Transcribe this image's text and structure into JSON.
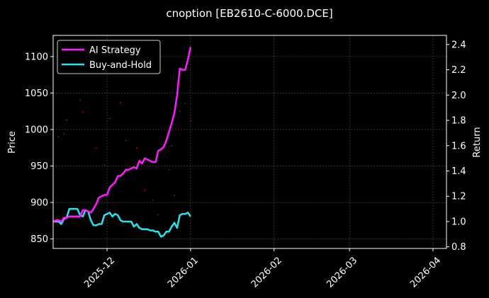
{
  "chart_data": {
    "type": "line",
    "title": "cnoption [EB2610-C-6000.DCE]",
    "xlabel": "",
    "ylabel": "Price",
    "y2label": "Return",
    "grid": true,
    "legend_position": "top-left",
    "x_range": [
      "2025-11-11",
      "2026-04-06"
    ],
    "x_ticks": [
      "2025-12",
      "2026-01",
      "2026-02",
      "2026-03",
      "2026-04"
    ],
    "x_tick_dates": [
      "2025-12-01",
      "2026-01-01",
      "2026-02-01",
      "2026-03-01",
      "2026-04-01"
    ],
    "ylim": [
      837,
      1129
    ],
    "y_ticks": [
      850,
      900,
      950,
      1000,
      1050,
      1100
    ],
    "y2lim": [
      0.787,
      2.472
    ],
    "y2_ticks": [
      0.8,
      1.0,
      1.2,
      1.4,
      1.6,
      1.8,
      2.0,
      2.2,
      2.4
    ],
    "colors": {
      "ai": "#ff1aff",
      "bh": "#22e6ee",
      "points": "#c0003c",
      "grid": "#555555"
    },
    "series": [
      {
        "name": "AI Strategy",
        "axis": "right",
        "color": "#ff1aff",
        "points": [
          [
            "2025-11-11",
            1.0
          ],
          [
            "2025-11-12",
            1.01
          ],
          [
            "2025-11-13",
            1.01
          ],
          [
            "2025-11-14",
            1.0
          ],
          [
            "2025-11-15",
            1.03
          ],
          [
            "2025-11-16",
            1.03
          ],
          [
            "2025-11-17",
            1.04
          ],
          [
            "2025-11-18",
            1.04
          ],
          [
            "2025-11-19",
            1.04
          ],
          [
            "2025-11-20",
            1.04
          ],
          [
            "2025-11-21",
            1.04
          ],
          [
            "2025-11-22",
            1.09
          ],
          [
            "2025-11-23",
            1.09
          ],
          [
            "2025-11-24",
            1.08
          ],
          [
            "2025-11-25",
            1.07
          ],
          [
            "2025-11-26",
            1.1
          ],
          [
            "2025-11-27",
            1.14
          ],
          [
            "2025-11-28",
            1.19
          ],
          [
            "2025-11-29",
            1.2
          ],
          [
            "2025-11-30",
            1.21
          ],
          [
            "2025-12-01",
            1.21
          ],
          [
            "2025-12-02",
            1.27
          ],
          [
            "2025-12-03",
            1.29
          ],
          [
            "2025-12-04",
            1.31
          ],
          [
            "2025-12-05",
            1.36
          ],
          [
            "2025-12-06",
            1.36
          ],
          [
            "2025-12-07",
            1.38
          ],
          [
            "2025-12-08",
            1.41
          ],
          [
            "2025-12-09",
            1.41
          ],
          [
            "2025-12-10",
            1.42
          ],
          [
            "2025-12-11",
            1.43
          ],
          [
            "2025-12-12",
            1.42
          ],
          [
            "2025-12-13",
            1.48
          ],
          [
            "2025-12-14",
            1.46
          ],
          [
            "2025-12-15",
            1.5
          ],
          [
            "2025-12-16",
            1.49
          ],
          [
            "2025-12-17",
            1.48
          ],
          [
            "2025-12-18",
            1.47
          ],
          [
            "2025-12-19",
            1.47
          ],
          [
            "2025-12-20",
            1.56
          ],
          [
            "2025-12-21",
            1.57
          ],
          [
            "2025-12-22",
            1.59
          ],
          [
            "2025-12-23",
            1.64
          ],
          [
            "2025-12-24",
            1.71
          ],
          [
            "2025-12-25",
            1.78
          ],
          [
            "2025-12-26",
            1.86
          ],
          [
            "2025-12-27",
            2.0
          ],
          [
            "2025-12-28",
            2.21
          ],
          [
            "2025-12-29",
            2.2
          ],
          [
            "2025-12-30",
            2.2
          ],
          [
            "2025-12-31",
            2.28
          ],
          [
            "2026-01-01",
            2.38
          ]
        ]
      },
      {
        "name": "Buy-and-Hold",
        "axis": "right",
        "color": "#22e6ee",
        "points": [
          [
            "2025-11-11",
            1.0
          ],
          [
            "2025-11-12",
            1.0
          ],
          [
            "2025-11-13",
            1.0
          ],
          [
            "2025-11-14",
            0.98
          ],
          [
            "2025-11-15",
            1.02
          ],
          [
            "2025-11-16",
            1.03
          ],
          [
            "2025-11-17",
            1.1
          ],
          [
            "2025-11-18",
            1.1
          ],
          [
            "2025-11-19",
            1.1
          ],
          [
            "2025-11-20",
            1.1
          ],
          [
            "2025-11-21",
            1.05
          ],
          [
            "2025-11-22",
            1.04
          ],
          [
            "2025-11-23",
            1.09
          ],
          [
            "2025-11-24",
            1.08
          ],
          [
            "2025-11-25",
            1.01
          ],
          [
            "2025-11-26",
            0.97
          ],
          [
            "2025-11-27",
            0.97
          ],
          [
            "2025-11-28",
            0.98
          ],
          [
            "2025-11-29",
            0.98
          ],
          [
            "2025-11-30",
            1.05
          ],
          [
            "2025-12-01",
            1.06
          ],
          [
            "2025-12-02",
            1.07
          ],
          [
            "2025-12-03",
            1.04
          ],
          [
            "2025-12-04",
            1.06
          ],
          [
            "2025-12-05",
            1.05
          ],
          [
            "2025-12-06",
            1.01
          ],
          [
            "2025-12-07",
            1.0
          ],
          [
            "2025-12-08",
            1.0
          ],
          [
            "2025-12-09",
            1.0
          ],
          [
            "2025-12-10",
            1.0
          ],
          [
            "2025-12-11",
            0.96
          ],
          [
            "2025-12-12",
            0.98
          ],
          [
            "2025-12-13",
            0.95
          ],
          [
            "2025-12-14",
            0.94
          ],
          [
            "2025-12-15",
            0.94
          ],
          [
            "2025-12-16",
            0.94
          ],
          [
            "2025-12-17",
            0.93
          ],
          [
            "2025-12-18",
            0.93
          ],
          [
            "2025-12-19",
            0.92
          ],
          [
            "2025-12-20",
            0.92
          ],
          [
            "2025-12-21",
            0.88
          ],
          [
            "2025-12-22",
            0.89
          ],
          [
            "2025-12-23",
            0.92
          ],
          [
            "2025-12-24",
            0.92
          ],
          [
            "2025-12-25",
            0.96
          ],
          [
            "2025-12-26",
            0.99
          ],
          [
            "2025-12-27",
            0.95
          ],
          [
            "2025-12-28",
            1.05
          ],
          [
            "2025-12-29",
            1.06
          ],
          [
            "2025-12-30",
            1.06
          ],
          [
            "2025-12-31",
            1.07
          ],
          [
            "2026-01-01",
            1.04
          ]
        ]
      },
      {
        "name": "Price",
        "axis": "left",
        "type": "scatter",
        "color": "#c0003c",
        "points": [
          [
            "2025-11-13",
            990
          ],
          [
            "2025-11-15",
            994
          ],
          [
            "2025-11-16",
            1013
          ],
          [
            "2025-11-21",
            1040
          ],
          [
            "2025-11-22",
            1024
          ],
          [
            "2025-11-27",
            975
          ],
          [
            "2025-11-30",
            951
          ],
          [
            "2025-12-02",
            1015
          ],
          [
            "2025-12-06",
            1037
          ],
          [
            "2025-12-08",
            985
          ],
          [
            "2025-12-12",
            975
          ],
          [
            "2025-12-13",
            955
          ],
          [
            "2025-12-15",
            917
          ],
          [
            "2025-12-18",
            903
          ],
          [
            "2025-12-20",
            883
          ],
          [
            "2025-12-24",
            945
          ],
          [
            "2025-12-25",
            978
          ],
          [
            "2025-12-26",
            910
          ],
          [
            "2025-12-28",
            1025
          ],
          [
            "2025-12-30",
            1036
          ],
          [
            "2026-01-01",
            1012
          ]
        ]
      }
    ]
  }
}
